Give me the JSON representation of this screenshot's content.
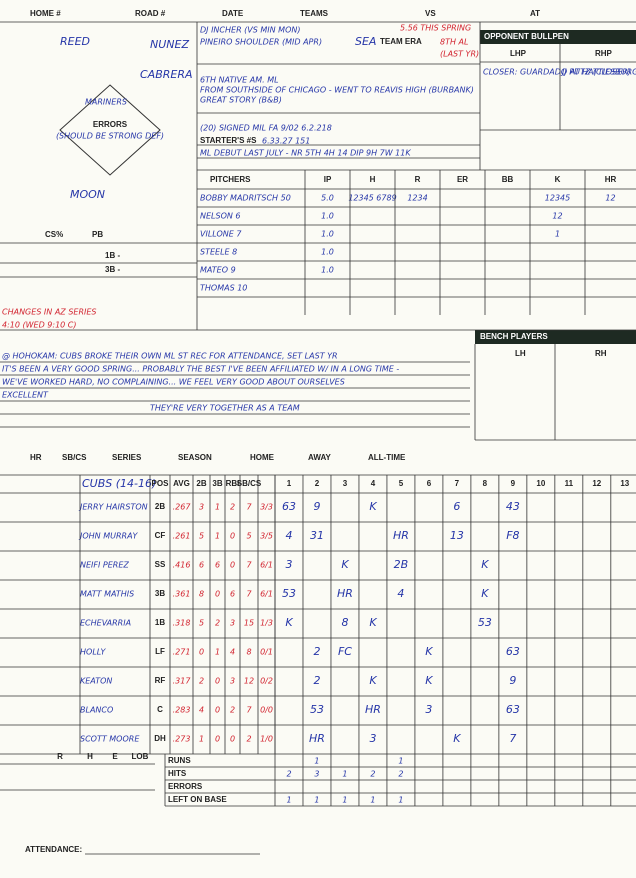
{
  "header": {
    "labels": [
      "HOME #",
      "ROAD #",
      "DATE",
      "TEAMS",
      "VS",
      "AT"
    ]
  },
  "field": {
    "players": [
      "REED",
      "NUNEZ",
      "CABRERA",
      "MARINERS",
      "MOON"
    ],
    "errors_label": "ERRORS",
    "errors_note": "(SHOULD BE STRONG DEF)",
    "cs_label": "CS%",
    "pb_label": "PB",
    "first_base": "1B -",
    "third_base": "3B -"
  },
  "game_info": {
    "notes": [
      "DJ INCHER (VS MIN MON)",
      "PINEIRO SHOULDER (MID APR)",
      "6TH NATIVE AM. ML",
      "FROM SOUTHSIDE OF CHICAGO - WENT TO REAVIS HIGH (BURBANK)",
      "GREAT STORY (B&B)",
      "(20) SIGNED MIL FA 9/02 6.2.218",
      "ML DEBUT LAST JULY - NR 5TH 4H 14 DIP 9H 7W 11K"
    ],
    "team": "SEA",
    "team_era_label": "TEAM ERA",
    "team_era": "5.56 THIS SPRING",
    "team_rank": "8TH AL",
    "team_rank_note": "(LAST YR)",
    "starters_label": "STARTER'S #S",
    "starters": "6.33.27 151"
  },
  "bullpen": {
    "title": "OPPONENT BULLPEN",
    "lhp_label": "LHP",
    "rhp_label": "RHP",
    "lhp_note": "CLOSER: GUARDADO AT HATTIESBURG",
    "rhp_note": "JJ PUTZ (CLOSER)"
  },
  "pitchers": {
    "headers": [
      "PITCHERS",
      "IP",
      "H",
      "R",
      "ER",
      "BB",
      "K",
      "HR"
    ],
    "rows": [
      [
        "BOBBY MADRITSCH 50",
        "5.0",
        "12345 6789",
        "1234",
        null,
        null,
        "12345",
        "12"
      ],
      [
        "NELSON 6",
        "1.0",
        null,
        null,
        null,
        null,
        "12",
        null
      ],
      [
        "VILLONE 7",
        "1.0",
        null,
        null,
        null,
        null,
        "1",
        null
      ],
      [
        "STEELE 8",
        "1.0",
        null,
        null,
        null,
        null,
        null,
        null
      ],
      [
        "MATEO 9",
        "1.0",
        null,
        null,
        null,
        null,
        null,
        null
      ],
      [
        "THOMAS 10",
        null,
        null,
        null,
        null,
        null,
        null,
        null
      ]
    ]
  },
  "changes": {
    "title": "CHANGES IN AZ SERIES",
    "time": "4:10 (WED 9:10 C)"
  },
  "notes": [
    "@ HOHOKAM: CUBS BROKE THEIR OWN ML ST REC FOR ATTENDANCE, SET LAST YR",
    "IT'S BEEN A VERY GOOD SPRING... PROBABLY THE BEST I'VE BEEN AFFILIATED W/ IN A LONG TIME -",
    "WE'VE WORKED HARD, NO COMPLAINING... WE FEEL VERY GOOD ABOUT OURSELVES",
    "EXCELLENT",
    "THEY'RE VERY TOGETHER AS A TEAM"
  ],
  "bench": {
    "title": "BENCH PLAYERS",
    "lh_label": "LH",
    "rh_label": "RH"
  },
  "lineup": {
    "top_headers": [
      "HR",
      "SB/CS",
      "SERIES",
      "SEASON",
      "HOME",
      "AWAY",
      "ALL-TIME"
    ],
    "team": "CUBS (14-16)",
    "stat_headers": [
      "POS",
      "AVG",
      "2B",
      "3B",
      "RBI",
      "SB/CS"
    ],
    "innings": [
      "1",
      "2",
      "3",
      "4",
      "5",
      "6",
      "7",
      "8",
      "9",
      "10",
      "11",
      "12",
      "13"
    ],
    "players": [
      {
        "name": "JERRY HAIRSTON",
        "stats": [
          "2B",
          ".267",
          "3",
          "1",
          "2",
          "7",
          "3/3"
        ],
        "plays": [
          "63",
          "9",
          null,
          "K",
          null,
          null,
          "6",
          null,
          "43"
        ]
      },
      {
        "name": "JOHN MURRAY",
        "stats": [
          "CF",
          ".261",
          "5",
          "1",
          "0",
          "5",
          "3/5"
        ],
        "plays": [
          "4",
          "31",
          null,
          null,
          "HR",
          null,
          "13",
          null,
          "F8"
        ]
      },
      {
        "name": "NEIFI PEREZ",
        "stats": [
          "SS",
          ".416",
          "6",
          "6",
          "0",
          "7",
          "6/1"
        ],
        "plays": [
          "3",
          null,
          "K",
          null,
          "2B",
          null,
          null,
          "K"
        ]
      },
      {
        "name": "MATT MATHIS",
        "stats": [
          "3B",
          ".361",
          "8",
          "0",
          "6",
          "7",
          "6/1"
        ],
        "plays": [
          "53",
          null,
          "HR",
          null,
          "4",
          null,
          null,
          "K"
        ]
      },
      {
        "name": "ECHEVARRIA",
        "stats": [
          "1B",
          ".318",
          "5",
          "2",
          "3",
          "15",
          "1/3"
        ],
        "plays": [
          "K",
          null,
          "8",
          "K",
          null,
          null,
          null,
          "53"
        ]
      },
      {
        "name": "HOLLY",
        "stats": [
          "LF",
          ".271",
          "0",
          "1",
          "4",
          "8",
          "0/1"
        ],
        "plays": [
          null,
          "2",
          "FC",
          null,
          null,
          "K",
          null,
          null,
          "63"
        ]
      },
      {
        "name": "KEATON",
        "stats": [
          "RF",
          ".317",
          "2",
          "0",
          "3",
          "12",
          "0/2"
        ],
        "plays": [
          null,
          "2",
          null,
          "K",
          null,
          "K",
          null,
          null,
          "9"
        ]
      },
      {
        "name": "BLANCO",
        "stats": [
          "C",
          ".283",
          "4",
          "0",
          "2",
          "7",
          "0/0"
        ],
        "plays": [
          null,
          "53",
          null,
          "HR",
          null,
          "3",
          null,
          null,
          "63"
        ]
      },
      {
        "name": "SCOTT MOORE",
        "stats": [
          "DH",
          ".273",
          "1",
          "0",
          "0",
          "2",
          "1/0"
        ],
        "plays": [
          null,
          "HR",
          null,
          "3",
          null,
          null,
          "K",
          null,
          "7"
        ]
      }
    ],
    "summary_labels": [
      "RUNS",
      "HITS",
      "ERRORS",
      "LEFT ON BASE"
    ],
    "summary": [
      [
        null,
        "1",
        null,
        null,
        "1"
      ],
      [
        "2",
        "3",
        "1",
        "2",
        "2"
      ],
      [
        null,
        null,
        null,
        null,
        null
      ],
      [
        "1",
        "1",
        "1",
        "1",
        "1"
      ]
    ],
    "totals_headers": [
      "R",
      "H",
      "E",
      "LOB"
    ],
    "attendance_label": "ATTENDANCE:"
  }
}
